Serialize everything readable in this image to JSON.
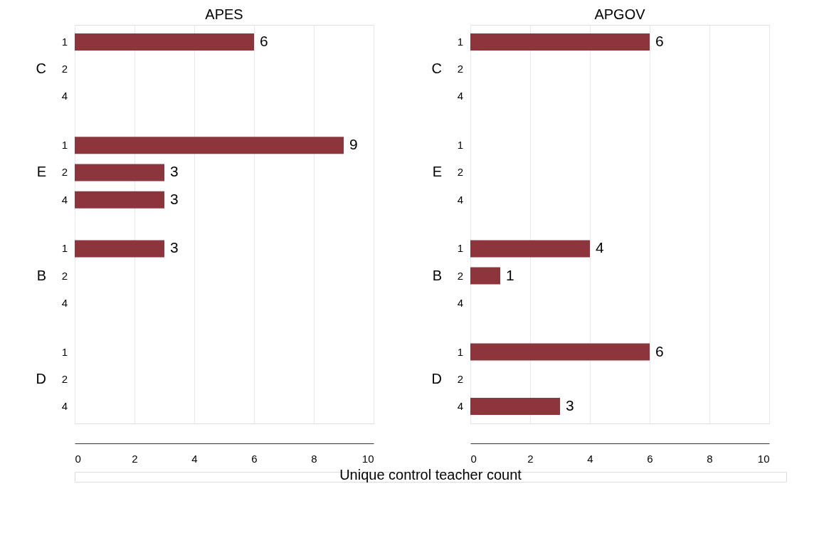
{
  "chart_data": [
    {
      "type": "bar",
      "orientation": "horizontal",
      "title": "APES",
      "xlabel": "Unique control teacher count",
      "categories": [
        "1",
        "2",
        "4",
        "1",
        "2",
        "4",
        "1",
        "2",
        "4",
        "1",
        "2",
        "4"
      ],
      "annotations": [
        "C",
        "E",
        "B",
        "D"
      ],
      "series": [
        {
          "color": "#8c353d",
          "values": [
            6,
            null,
            null,
            9,
            3,
            3,
            3,
            null,
            null,
            null,
            null,
            null
          ]
        }
      ],
      "xlim": [
        0,
        10
      ],
      "xticks": [
        0,
        2,
        4,
        6,
        8,
        10
      ],
      "grid": "x",
      "data_labels": true
    },
    {
      "type": "bar",
      "orientation": "horizontal",
      "title": "APGOV",
      "categories": [
        "1",
        "2",
        "4",
        "1",
        "2",
        "4",
        "1",
        "2",
        "4",
        "1",
        "2",
        "4"
      ],
      "annotations": [
        "C",
        "E",
        "B",
        "D"
      ],
      "series": [
        {
          "color": "#8c353d",
          "values": [
            6,
            null,
            null,
            null,
            null,
            null,
            4,
            1,
            null,
            6,
            null,
            3
          ]
        }
      ],
      "xlim": [
        0,
        10
      ],
      "xticks": [
        0,
        2,
        4,
        6,
        8,
        10
      ],
      "grid": "x",
      "data_labels": true
    }
  ]
}
